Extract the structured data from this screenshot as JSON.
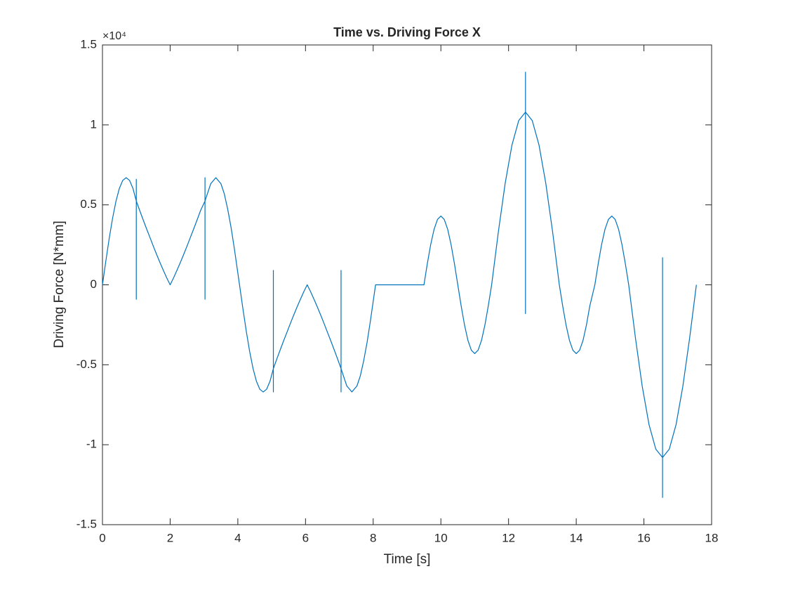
{
  "chart_data": {
    "type": "line",
    "title": "Time vs. Driving Force X",
    "xlabel": "Time [s]",
    "ylabel": "Driving Force [N*mm]",
    "y_multiplier": "×10⁴",
    "color": "#0072bd",
    "xlim": [
      0,
      18
    ],
    "xticks": [
      0,
      2,
      4,
      6,
      8,
      10,
      12,
      14,
      16,
      18
    ],
    "ylim": [
      -15000,
      15000
    ],
    "yticks": [
      {
        "value": -15000,
        "label": "-1.5"
      },
      {
        "value": -10000,
        "label": "-1"
      },
      {
        "value": -5000,
        "label": "-0.5"
      },
      0,
      {
        "value": 5000,
        "label": "0.5"
      },
      {
        "value": 10000,
        "label": "1"
      },
      {
        "value": 15000,
        "label": "1.5"
      }
    ],
    "grid": false,
    "x": [
      0,
      0.1,
      0.2,
      0.3,
      0.4,
      0.5,
      0.6,
      0.7,
      0.8,
      0.9,
      1.0,
      1.0,
      1.0,
      1.0,
      1.1,
      1.2,
      1.3,
      1.4,
      1.5,
      1.6,
      1.7,
      1.8,
      1.9,
      2.0,
      2.1,
      2.2,
      2.3,
      2.4,
      2.5,
      2.6,
      2.7,
      2.8,
      2.9,
      3.03,
      3.03,
      3.03,
      3.03,
      3.1,
      3.2,
      3.35,
      3.5,
      3.6,
      3.7,
      3.8,
      3.9,
      4.05,
      4.15,
      4.25,
      4.35,
      4.45,
      4.55,
      4.65,
      4.75,
      4.85,
      4.95,
      5.05,
      5.05,
      5.05,
      5.05,
      5.15,
      5.25,
      5.35,
      5.45,
      5.55,
      5.65,
      5.75,
      5.85,
      5.95,
      6.05,
      6.15,
      6.25,
      6.35,
      6.45,
      6.55,
      6.65,
      6.75,
      6.85,
      6.95,
      7.05,
      7.05,
      7.05,
      7.05,
      7.12,
      7.22,
      7.37,
      7.52,
      7.62,
      7.72,
      7.82,
      7.92,
      8.07,
      9.5,
      9.6,
      9.7,
      9.8,
      9.9,
      10.0,
      10.1,
      10.2,
      10.3,
      10.4,
      10.5,
      10.6,
      10.7,
      10.8,
      10.9,
      11.0,
      11.1,
      11.2,
      11.3,
      11.4,
      11.5,
      11.7,
      11.9,
      12.1,
      12.3,
      12.5,
      12.5,
      12.5,
      12.5,
      12.7,
      12.9,
      13.1,
      13.3,
      13.5,
      13.6,
      13.7,
      13.8,
      13.9,
      14.0,
      14.1,
      14.2,
      14.3,
      14.4,
      14.55,
      14.65,
      14.75,
      14.85,
      14.95,
      15.05,
      15.15,
      15.25,
      15.35,
      15.45,
      15.55,
      15.75,
      15.95,
      16.15,
      16.35,
      16.55,
      16.55,
      16.55,
      16.55,
      16.75,
      16.95,
      17.15,
      17.35,
      17.55
    ],
    "values": [
      0,
      1491,
      2907,
      4176,
      5238,
      6036,
      6532,
      6700,
      6532,
      6036,
      5238,
      6600,
      -900,
      5238,
      4650,
      4080,
      3520,
      2980,
      2430,
      1900,
      1390,
      900,
      430,
      0,
      430,
      900,
      1390,
      1900,
      2430,
      2980,
      3520,
      4080,
      4650,
      5238,
      6700,
      -900,
      5238,
      5690,
      6325,
      6700,
      6325,
      5690,
      4738,
      3590,
      2220,
      0,
      -1491,
      -2907,
      -4176,
      -5238,
      -6036,
      -6532,
      -6700,
      -6532,
      -6036,
      -5238,
      900,
      -6700,
      -5238,
      -4650,
      -4080,
      -3520,
      -2980,
      -2430,
      -1900,
      -1390,
      -900,
      -430,
      0,
      -430,
      -900,
      -1390,
      -1900,
      -2430,
      -2980,
      -3520,
      -4080,
      -4650,
      -5238,
      900,
      -6700,
      -5238,
      -5690,
      -6325,
      -6700,
      -6325,
      -5690,
      -4738,
      -3590,
      -2220,
      0,
      0,
      1329,
      2528,
      3479,
      4089,
      4300,
      4089,
      3479,
      2528,
      1329,
      0,
      -1329,
      -2528,
      -3479,
      -4089,
      -4300,
      -4089,
      -3479,
      -2528,
      -1329,
      0,
      3337,
      6348,
      8737,
      10271,
      10800,
      13300,
      -1800,
      10800,
      10271,
      8737,
      6348,
      3337,
      0,
      -1329,
      -2528,
      -3479,
      -4089,
      -4300,
      -4089,
      -3479,
      -2528,
      -1329,
      0,
      1329,
      2528,
      3479,
      4089,
      4300,
      4089,
      3479,
      2528,
      1329,
      0,
      -3337,
      -6348,
      -8737,
      -10271,
      -10800,
      1700,
      -13300,
      -10800,
      -10271,
      -8737,
      -6348,
      -3337,
      0
    ]
  }
}
